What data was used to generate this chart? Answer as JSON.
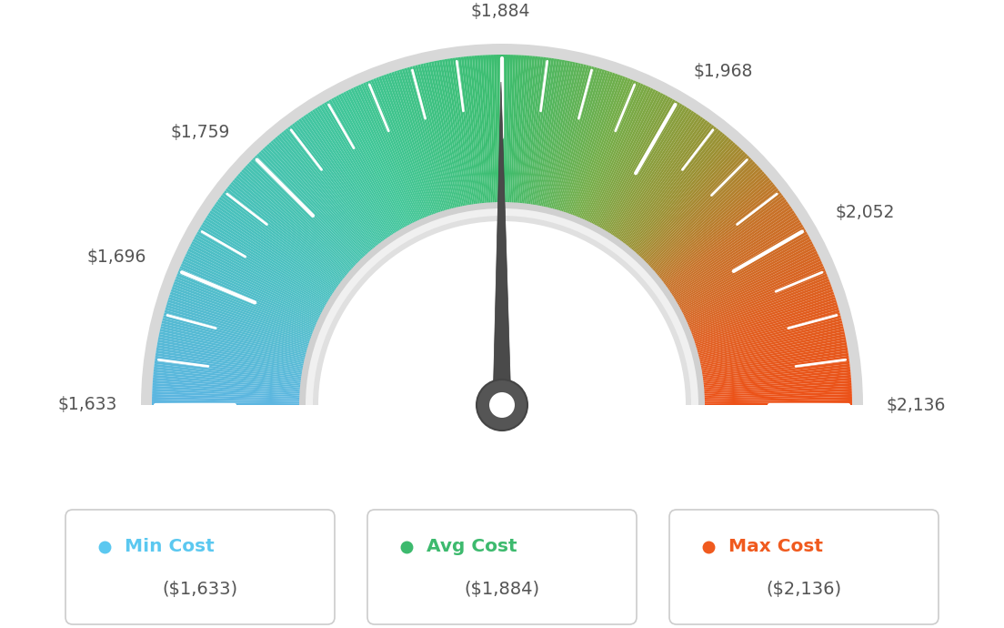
{
  "min_val": 1633,
  "avg_val": 1884,
  "max_val": 2136,
  "label_data": [
    [
      1633,
      "$1,633"
    ],
    [
      1696,
      "$1,696"
    ],
    [
      1759,
      "$1,759"
    ],
    [
      1884,
      "$1,884"
    ],
    [
      1968,
      "$1,968"
    ],
    [
      2052,
      "$2,052"
    ],
    [
      2136,
      "$2,136"
    ]
  ],
  "legend_boxes": [
    {
      "label": "Min Cost",
      "value": "($1,633)",
      "dot_color": "#5bc8f0",
      "text_color": "#5bc8f0"
    },
    {
      "label": "Avg Cost",
      "value": "($1,884)",
      "dot_color": "#3dba6e",
      "text_color": "#3dba6e"
    },
    {
      "label": "Max Cost",
      "value": "($2,136)",
      "dot_color": "#f05a1e",
      "text_color": "#f05a1e"
    }
  ],
  "bg_color": "#ffffff",
  "colors_gradient": [
    [
      0.0,
      [
        0.365,
        0.714,
        0.882
      ]
    ],
    [
      0.18,
      [
        0.29,
        0.753,
        0.753
      ]
    ],
    [
      0.35,
      [
        0.251,
        0.776,
        0.592
      ]
    ],
    [
      0.5,
      [
        0.239,
        0.741,
        0.431
      ]
    ],
    [
      0.62,
      [
        0.459,
        0.678,
        0.282
      ]
    ],
    [
      0.72,
      [
        0.608,
        0.569,
        0.2
      ]
    ],
    [
      0.8,
      [
        0.78,
        0.447,
        0.157
      ]
    ],
    [
      0.9,
      [
        0.878,
        0.365,
        0.118
      ]
    ],
    [
      1.0,
      [
        0.929,
        0.318,
        0.094
      ]
    ]
  ]
}
